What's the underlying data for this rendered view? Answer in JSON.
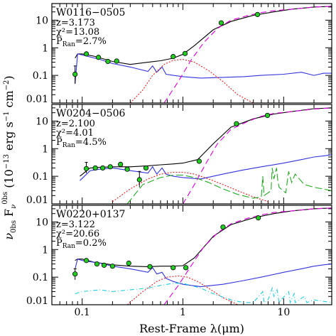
{
  "chart_data": {
    "type": "line",
    "x_axis": {
      "label": "Rest-Frame λ(μm)",
      "scale": "log",
      "range": [
        0.05,
        30
      ],
      "tick_values": [
        0.1,
        1,
        10
      ],
      "tick_labels": [
        "0.1",
        "1",
        "10"
      ]
    },
    "y_axis": {
      "label_parts": [
        "ν",
        "0bs",
        " F",
        "ν",
        "0bs",
        " (10",
        "−13",
        " erg s",
        "−1",
        " cm",
        "−2",
        ")"
      ],
      "scale": "log",
      "range": [
        0.01,
        40
      ],
      "tick_values": [
        0.01,
        0.1,
        1,
        10
      ],
      "tick_labels": [
        "0.01",
        "0.1",
        "1",
        "10"
      ]
    },
    "panels": [
      {
        "title": "W0116−0505",
        "stats": {
          "z": "z=3.173",
          "chi2": "χ²=13.08",
          "p_label": "P",
          "p_sub": "Ran",
          "p_val": "=2.7%"
        },
        "points": [
          {
            "x": 0.085,
            "y": 0.11,
            "lo": 0.05,
            "hi": 0.22
          },
          {
            "x": 0.11,
            "y": 0.6
          },
          {
            "x": 0.145,
            "y": 0.45
          },
          {
            "x": 0.18,
            "y": 0.32
          },
          {
            "x": 0.22,
            "y": 0.33
          },
          {
            "x": 0.8,
            "y": 0.48
          },
          {
            "x": 1.05,
            "y": 0.62
          },
          {
            "x": 2.4,
            "y": 8.0
          },
          {
            "x": 5.5,
            "y": 16.0
          }
        ],
        "series": [
          {
            "color": "#000000",
            "dash": "",
            "x": [
              0.085,
              0.09,
              0.1,
              0.13,
              0.2,
              0.3,
              0.45,
              0.6,
              0.8,
              1.0,
              1.3,
              2.0,
              3.0,
              5.0,
              8.0,
              12.0,
              20.0,
              30.0
            ],
            "y": [
              0.42,
              0.6,
              0.6,
              0.5,
              0.32,
              0.25,
              0.3,
              0.34,
              0.42,
              0.58,
              1.2,
              4.5,
              9.0,
              15.0,
              20.0,
              25.0,
              30.0,
              32.0
            ]
          },
          {
            "color": "#3333dd",
            "dash": "",
            "x": [
              0.085,
              0.09,
              0.1,
              0.15,
              0.2,
              0.3,
              0.45,
              0.5,
              0.55,
              0.62,
              0.68,
              0.8,
              1.0,
              1.5,
              2.5,
              4.0,
              6.0,
              10.0,
              15.0,
              20.0,
              25.0,
              30.0
            ],
            "y": [
              0.05,
              0.6,
              0.55,
              0.38,
              0.27,
              0.2,
              0.14,
              0.22,
              0.13,
              0.2,
              0.11,
              0.1,
              0.09,
              0.08,
              0.085,
              0.09,
              0.1,
              0.11,
              0.13,
              0.1,
              0.12,
              0.12
            ]
          },
          {
            "color": "#dd2222",
            "dash": "2,2",
            "x": [
              0.3,
              0.4,
              0.5,
              0.65,
              0.8,
              1.0,
              1.3,
              1.8,
              2.5,
              3.5,
              5.0
            ],
            "y": [
              0.01,
              0.03,
              0.1,
              0.25,
              0.35,
              0.38,
              0.3,
              0.15,
              0.06,
              0.02,
              0.01
            ]
          },
          {
            "color": "#dd00dd",
            "dash": "8,5",
            "x": [
              0.65,
              0.9,
              1.2,
              1.6,
              2.2,
              3.0,
              4.5,
              6.0,
              8.0,
              12.0,
              20.0,
              30.0
            ],
            "y": [
              0.01,
              0.06,
              0.35,
              1.5,
              5.0,
              10.0,
              15.0,
              19.0,
              22.0,
              25.0,
              30.0,
              32.0
            ]
          }
        ]
      },
      {
        "title": "W0204−0506",
        "stats": {
          "z": "z=2.100",
          "chi2": "χ²=4.01",
          "p_label": "P",
          "p_sub": "Ran",
          "p_val": "=4.5%"
        },
        "points": [
          {
            "x": 0.11,
            "y": 0.19,
            "lo": 0.13,
            "hi": 0.32
          },
          {
            "x": 0.135,
            "y": 0.2
          },
          {
            "x": 0.16,
            "y": 0.2
          },
          {
            "x": 0.19,
            "y": 0.22
          },
          {
            "x": 0.24,
            "y": 0.27
          },
          {
            "x": 0.28,
            "y": 0.18
          },
          {
            "x": 0.37,
            "y": 0.075,
            "lo": 0.04,
            "hi": 0.15
          },
          {
            "x": 0.43,
            "y": 0.2
          },
          {
            "x": 1.45,
            "y": 0.35
          },
          {
            "x": 3.4,
            "y": 8.0
          },
          {
            "x": 6.9,
            "y": 16.0
          }
        ],
        "series": [
          {
            "color": "#000000",
            "dash": "",
            "x": [
              0.095,
              0.12,
              0.15,
              0.2,
              0.3,
              0.45,
              0.6,
              0.8,
              1.0,
              1.4,
              2.0,
              3.0,
              5.0,
              8.0,
              12.0,
              20.0,
              30.0
            ],
            "y": [
              0.1,
              0.2,
              0.21,
              0.22,
              0.22,
              0.24,
              0.26,
              0.28,
              0.3,
              0.4,
              1.5,
              6.0,
              12.0,
              18.0,
              22.0,
              28.0,
              30.0
            ]
          },
          {
            "color": "#3333dd",
            "dash": "",
            "x": [
              0.095,
              0.12,
              0.15,
              0.2,
              0.3,
              0.45,
              0.5,
              0.55,
              0.62,
              0.68,
              0.8,
              1.0,
              1.5,
              2.5,
              4.0,
              6.0,
              10.0,
              15.0,
              20.0,
              25.0,
              30.0
            ],
            "y": [
              0.07,
              0.16,
              0.18,
              0.2,
              0.16,
              0.13,
              0.22,
              0.12,
              0.2,
              0.12,
              0.1,
              0.09,
              0.08,
              0.12,
              0.17,
              0.22,
              0.3,
              0.4,
              0.5,
              0.55,
              0.6
            ]
          },
          {
            "color": "#dd2222",
            "dash": "2,2",
            "x": [
              0.2,
              0.3,
              0.45,
              0.6,
              0.8,
              1.0,
              1.3,
              1.8,
              2.5,
              3.5,
              5.0,
              7.0
            ],
            "y": [
              0.012,
              0.035,
              0.08,
              0.12,
              0.14,
              0.14,
              0.12,
              0.08,
              0.05,
              0.03,
              0.018,
              0.012
            ]
          },
          {
            "color": "#22aa22",
            "dash": "10,4",
            "x": [
              0.28,
              0.4,
              0.6,
              0.8,
              1.0,
              1.3,
              1.8,
              2.5,
              3.5,
              5.0,
              6.0,
              6.2,
              6.4,
              7.5,
              7.7,
              8.0,
              8.5,
              8.7,
              9.0,
              10.5,
              11.2,
              12.0,
              13.0,
              16.0,
              20.0,
              30.0
            ],
            "y": [
              0.01,
              0.05,
              0.09,
              0.11,
              0.11,
              0.09,
              0.06,
              0.035,
              0.022,
              0.016,
              0.018,
              0.1,
              0.02,
              0.03,
              0.2,
              0.08,
              0.2,
              0.08,
              0.04,
              0.025,
              0.15,
              0.06,
              0.12,
              0.05,
              0.04,
              0.03
            ]
          },
          {
            "color": "#dd00dd",
            "dash": "8,5",
            "x": [
              1.0,
              1.3,
              1.7,
              2.2,
              3.0,
              4.5,
              6.0,
              8.0,
              12.0,
              20.0,
              30.0
            ],
            "y": [
              0.01,
              0.05,
              0.3,
              1.5,
              5.0,
              10.0,
              15.0,
              19.0,
              22.0,
              27.0,
              30.0
            ]
          }
        ]
      },
      {
        "title": "W0220+0137",
        "stats": {
          "z": "z=3.122",
          "chi2": "χ²=20.66",
          "p_label": "P",
          "p_sub": "Ran",
          "p_val": "=0.2%"
        },
        "points": [
          {
            "x": 0.085,
            "y": 0.13,
            "lo": 0.08,
            "hi": 0.2
          },
          {
            "x": 0.11,
            "y": 0.4
          },
          {
            "x": 0.14,
            "y": 0.3
          },
          {
            "x": 0.165,
            "y": 0.27
          },
          {
            "x": 0.2,
            "y": 0.25
          },
          {
            "x": 0.29,
            "y": 0.32
          },
          {
            "x": 0.47,
            "y": 0.24
          },
          {
            "x": 0.8,
            "y": 0.22
          },
          {
            "x": 1.07,
            "y": 0.22
          },
          {
            "x": 2.5,
            "y": 6.5
          },
          {
            "x": 5.6,
            "y": 14.0
          }
        ],
        "series": [
          {
            "color": "#000000",
            "dash": "",
            "x": [
              0.085,
              0.09,
              0.1,
              0.13,
              0.2,
              0.3,
              0.45,
              0.6,
              0.8,
              1.0,
              1.3,
              2.0,
              3.0,
              5.0,
              8.0,
              12.0,
              20.0,
              30.0
            ],
            "y": [
              0.4,
              0.45,
              0.45,
              0.35,
              0.28,
              0.25,
              0.24,
              0.25,
              0.25,
              0.26,
              0.5,
              3.0,
              8.0,
              14.0,
              20.0,
              25.0,
              30.0,
              32.0
            ]
          },
          {
            "color": "#3333dd",
            "dash": "",
            "x": [
              0.085,
              0.09,
              0.1,
              0.15,
              0.2,
              0.3,
              0.45,
              0.5,
              0.55,
              0.62,
              0.68,
              0.8,
              1.0,
              1.5,
              2.5,
              4.0,
              6.0,
              10.0,
              15.0,
              20.0,
              25.0,
              30.0
            ],
            "y": [
              0.2,
              0.45,
              0.4,
              0.32,
              0.25,
              0.2,
              0.15,
              0.22,
              0.13,
              0.15,
              0.09,
              0.07,
              0.055,
              0.045,
              0.055,
              0.075,
              0.1,
              0.15,
              0.2,
              0.25,
              0.28,
              0.3
            ]
          },
          {
            "color": "#dd2222",
            "dash": "2,2",
            "x": [
              0.28,
              0.4,
              0.55,
              0.7,
              0.9,
              1.1,
              1.4,
              1.9,
              2.5,
              3.5
            ],
            "y": [
              0.01,
              0.03,
              0.07,
              0.1,
              0.11,
              0.1,
              0.07,
              0.035,
              0.018,
              0.01
            ]
          },
          {
            "color": "#22ccdd",
            "dash": "6,3,1,3",
            "x": [
              0.085,
              0.1,
              0.15,
              0.2,
              0.3,
              0.45,
              0.6,
              0.8,
              1.0,
              1.5,
              2.0,
              3.0,
              4.0,
              5.0,
              6.2,
              6.4,
              7.0,
              7.7,
              8.0,
              8.6,
              9.0,
              11.2,
              11.6,
              12.7,
              13.0,
              16.0,
              17.0,
              20.0,
              30.0
            ],
            "y": [
              0.025,
              0.03,
              0.035,
              0.03,
              0.035,
              0.04,
              0.05,
              0.06,
              0.06,
              0.04,
              0.025,
              0.015,
              0.012,
              0.012,
              0.03,
              0.012,
              0.015,
              0.04,
              0.02,
              0.035,
              0.012,
              0.03,
              0.012,
              0.025,
              0.012,
              0.02,
              0.012,
              0.015,
              0.012
            ]
          },
          {
            "color": "#dd00dd",
            "dash": "8,5",
            "x": [
              0.65,
              0.9,
              1.2,
              1.6,
              2.2,
              3.0,
              4.5,
              6.0,
              8.0,
              12.0,
              20.0,
              30.0
            ],
            "y": [
              0.01,
              0.05,
              0.25,
              1.2,
              4.0,
              8.5,
              14.0,
              18.0,
              22.0,
              25.0,
              30.0,
              32.0
            ]
          }
        ]
      }
    ]
  }
}
